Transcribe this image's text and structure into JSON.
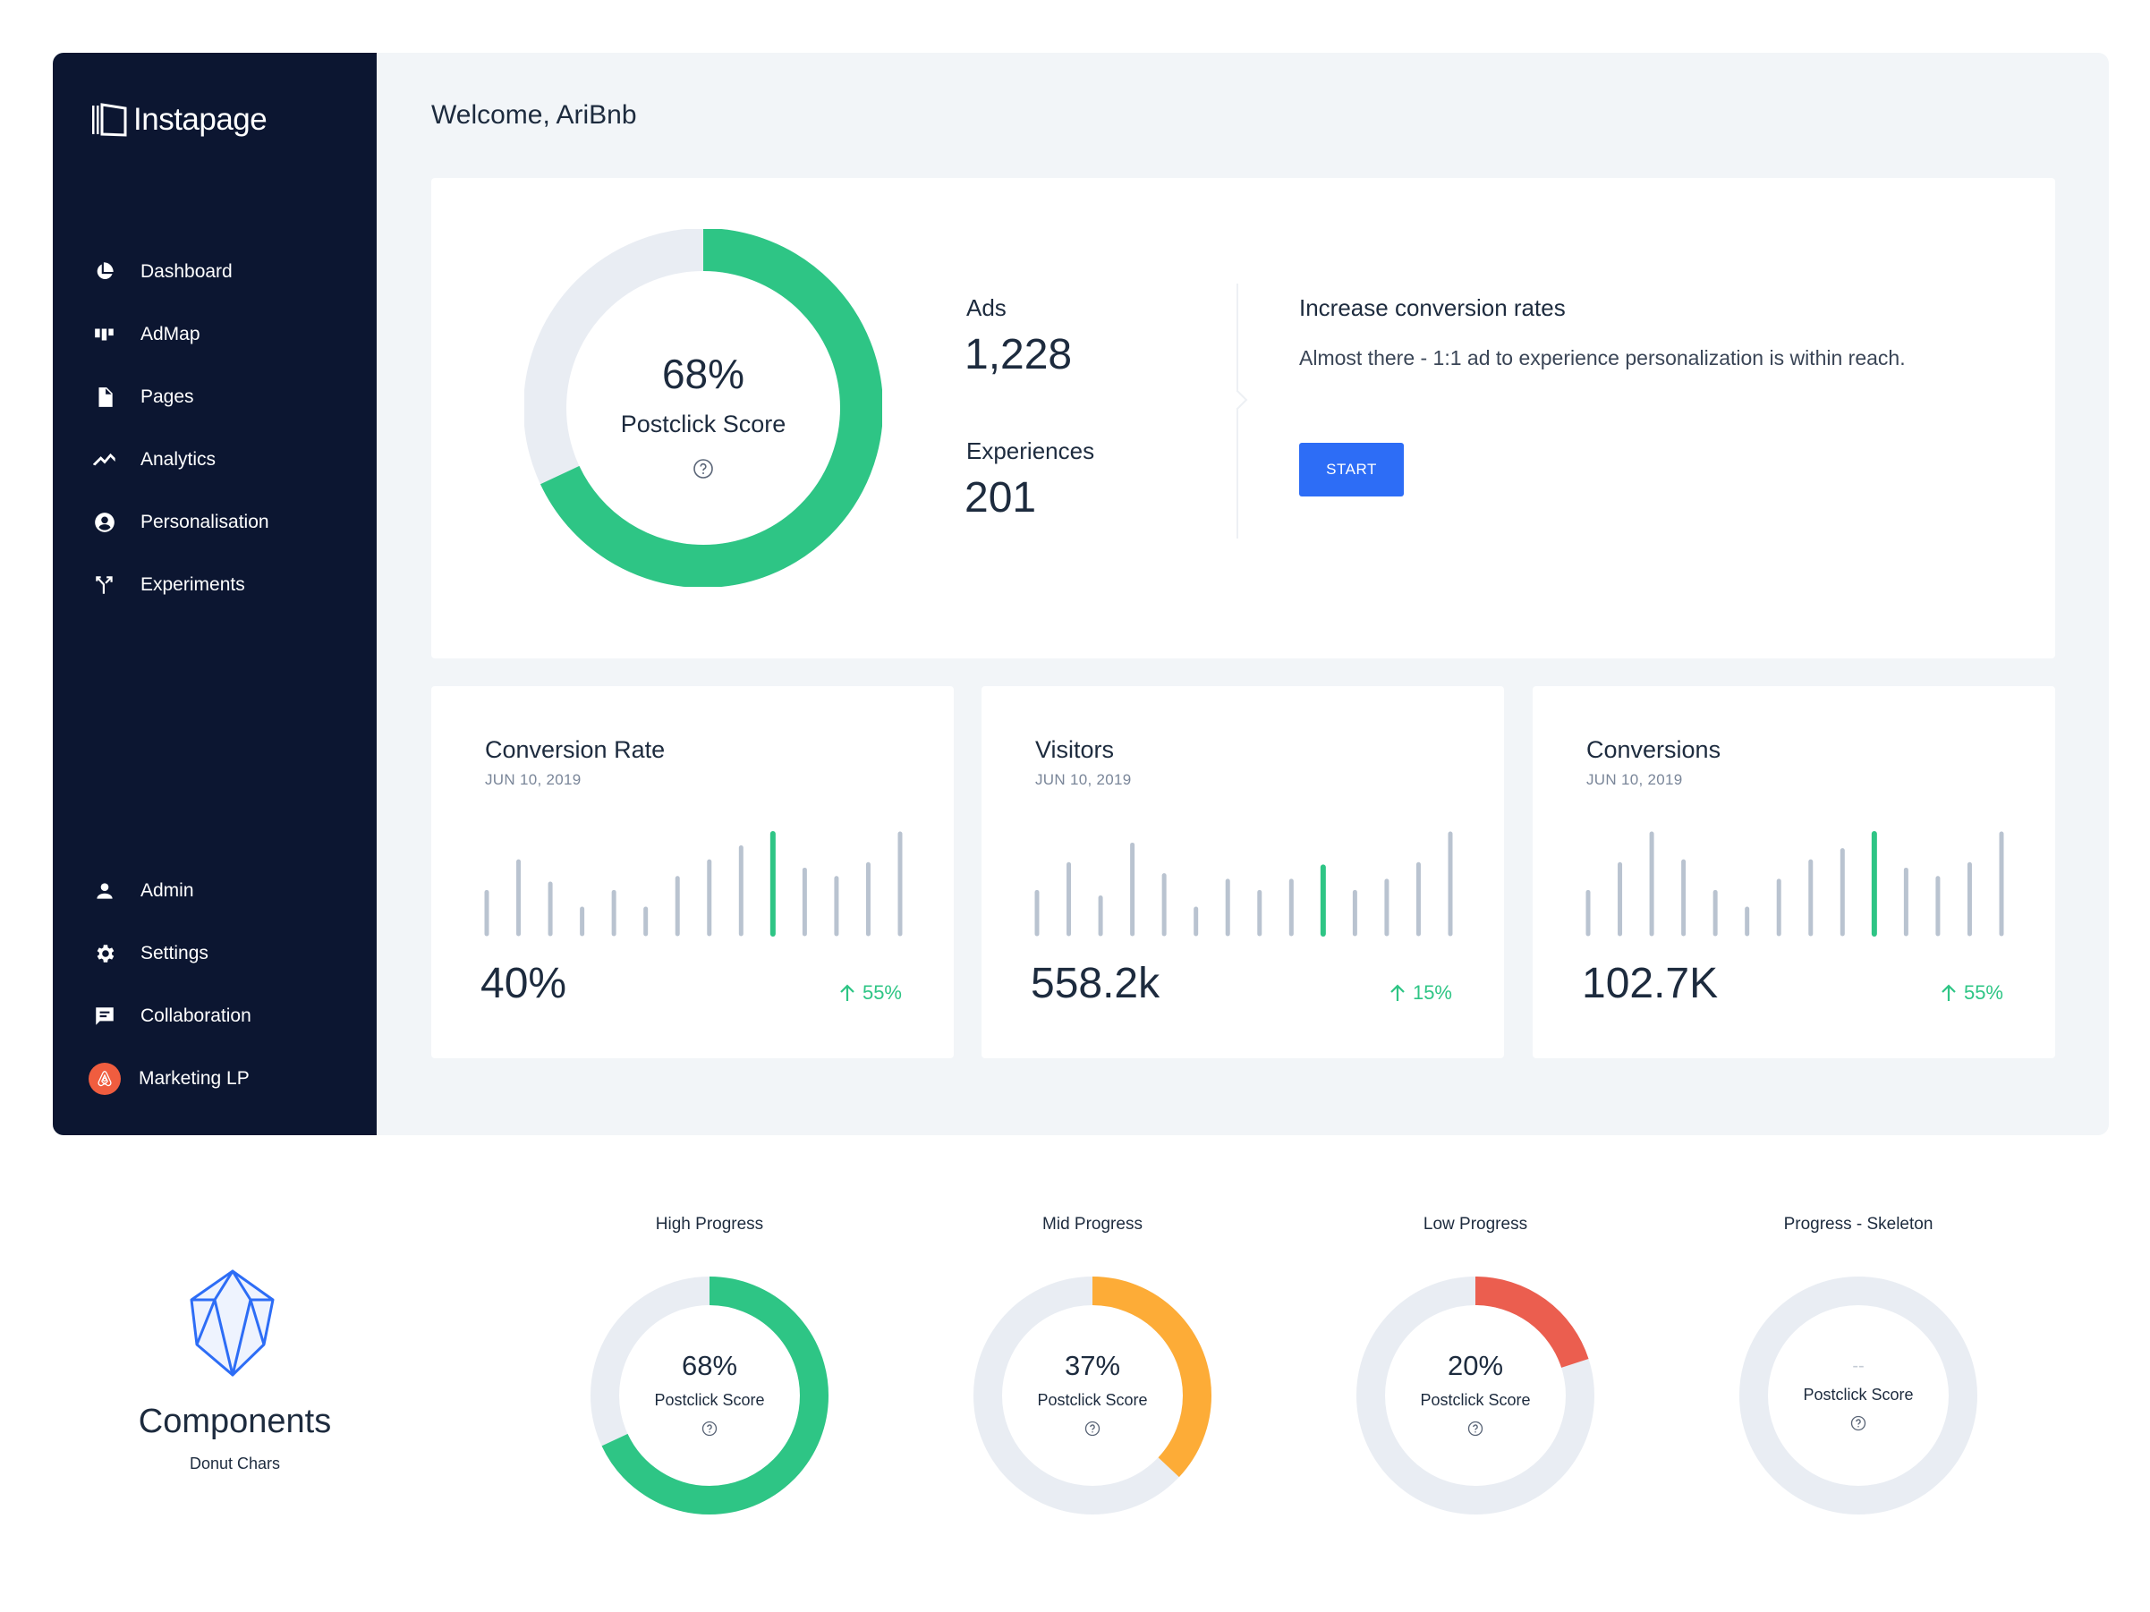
{
  "brand": {
    "name": "Instapage"
  },
  "sidebar": {
    "items": [
      {
        "label": "Dashboard",
        "icon": "pie-chart-icon"
      },
      {
        "label": "AdMap",
        "icon": "admap-icon"
      },
      {
        "label": "Pages",
        "icon": "document-icon"
      },
      {
        "label": "Analytics",
        "icon": "trend-line-icon"
      },
      {
        "label": "Personalisation",
        "icon": "user-circle-icon"
      },
      {
        "label": "Experiments",
        "icon": "branch-icon"
      }
    ],
    "bottom_items": [
      {
        "label": "Admin",
        "icon": "user-icon"
      },
      {
        "label": "Settings",
        "icon": "gear-icon"
      },
      {
        "label": "Collaboration",
        "icon": "chat-icon"
      },
      {
        "label": "Marketing LP",
        "icon": "airbnb-icon"
      }
    ]
  },
  "welcome": "Welcome, AriBnb",
  "hero": {
    "score": {
      "pct_label": "68%",
      "value": 68,
      "label": "Postclick Score"
    },
    "ads": {
      "title": "Ads",
      "value": "1,228"
    },
    "experiences": {
      "title": "Experiences",
      "value": "201"
    },
    "cta": {
      "title": "Increase conversion rates",
      "text": "Almost there - 1:1 ad to experience personalization is within reach.",
      "button": "START"
    }
  },
  "metrics": [
    {
      "title": "Conversion Rate",
      "date": "JUN 10, 2019",
      "value": "40%",
      "change": "55%",
      "bars": [
        30,
        52,
        36,
        18,
        30,
        18,
        40,
        52,
        62,
        72,
        46,
        40,
        50,
        72
      ],
      "highlight": 9
    },
    {
      "title": "Visitors",
      "date": "JUN 10, 2019",
      "value": "558.2k",
      "change": "15%",
      "bars": [
        30,
        50,
        26,
        64,
        42,
        18,
        38,
        30,
        38,
        48,
        30,
        38,
        50,
        72
      ],
      "highlight": 9
    },
    {
      "title": "Conversions",
      "date": "JUN 10, 2019",
      "value": "102.7K",
      "change": "55%",
      "bars": [
        30,
        50,
        72,
        52,
        30,
        18,
        38,
        52,
        60,
        72,
        46,
        40,
        50,
        72
      ],
      "highlight": 9
    }
  ],
  "components": {
    "title": "Components",
    "subtitle": "Donut Chars"
  },
  "donuts": [
    {
      "caption": "High Progress",
      "pct_label": "68%",
      "value": 68,
      "label": "Postclick Score",
      "color": "#2ec585"
    },
    {
      "caption": "Mid Progress",
      "pct_label": "37%",
      "value": 37,
      "label": "Postclick Score",
      "color": "#fdac37"
    },
    {
      "caption": "Low Progress",
      "pct_label": "20%",
      "value": 20,
      "label": "Postclick Score",
      "color": "#eb5e4f"
    },
    {
      "caption": "Progress  - Skeleton",
      "pct_label": "--",
      "value": 0,
      "label": "Postclick Score",
      "color": "#e9edf3"
    }
  ],
  "colors": {
    "sidebar": "#0c1631",
    "accent": "#2d6df6",
    "success": "#2ec585",
    "track": "#e9edf3",
    "bar": "#b9c3d0"
  }
}
